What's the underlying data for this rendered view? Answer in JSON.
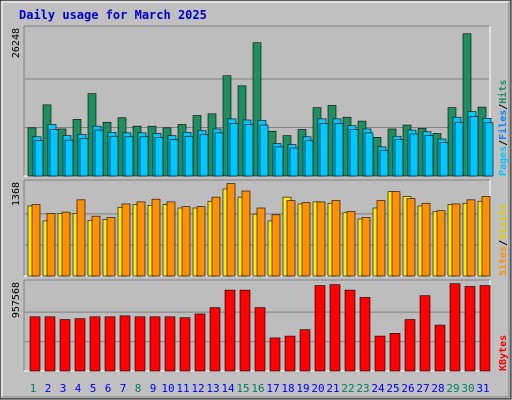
{
  "chart_data": {
    "type": "bar",
    "title": "Daily usage for March 2025",
    "days": [
      "1",
      "2",
      "3",
      "4",
      "5",
      "6",
      "7",
      "8",
      "9",
      "10",
      "11",
      "12",
      "13",
      "14",
      "15",
      "16",
      "17",
      "18",
      "19",
      "20",
      "21",
      "22",
      "23",
      "24",
      "25",
      "26",
      "27",
      "28",
      "29",
      "30",
      "31"
    ],
    "weekend_days": [
      1,
      8,
      15,
      16,
      22,
      23,
      29,
      30
    ],
    "panels": [
      {
        "id": "pages-files-hits",
        "max_label": "26248",
        "ymax": 26248,
        "label_parts": [
          "Pages",
          "Files",
          "Hits"
        ],
        "series": [
          {
            "name": "Hits",
            "color": "#1f8f60",
            "values": [
              8600,
              12700,
              8400,
              10100,
              14700,
              9600,
              10400,
              8900,
              8900,
              8600,
              9200,
              10800,
              11100,
              17900,
              16100,
              23800,
              8000,
              7200,
              8300,
              12200,
              12600,
              10500,
              9800,
              6900,
              8400,
              9100,
              8500,
              7600,
              12200,
              25400,
              12300
            ]
          },
          {
            "name": "Files",
            "color": "#00c8ff",
            "values": [
              7000,
              9200,
              7200,
              7400,
              8900,
              7800,
              7700,
              7700,
              7600,
              7200,
              7800,
              8100,
              8400,
              10200,
              10000,
              9900,
              5800,
              5600,
              7000,
              10200,
              10200,
              9000,
              8400,
              5200,
              7100,
              8200,
              7900,
              6600,
              10500,
              11500,
              10300
            ]
          },
          {
            "name": "Pages",
            "color": "#00c8ff",
            "values": [
              6300,
              8300,
              6400,
              6700,
              8200,
              7100,
              7000,
              7000,
              6900,
              6500,
              7100,
              7400,
              7700,
              9400,
              9200,
              9100,
              5200,
              5000,
              6300,
              9400,
              9400,
              8300,
              7700,
              4600,
              6500,
              7500,
              7200,
              6000,
              9600,
              10600,
              9500
            ]
          }
        ]
      },
      {
        "id": "visits-sites",
        "max_label": "1368",
        "ymax": 1368,
        "label_parts": [
          "Sites",
          "Visits"
        ],
        "series": [
          {
            "name": "Visits",
            "color": "#ffe810",
            "values": [
              1030,
              810,
              920,
              920,
              820,
              830,
              1010,
              1050,
              1040,
              1050,
              1000,
              1000,
              1100,
              1280,
              1160,
              910,
              810,
              1160,
              1060,
              1090,
              1070,
              930,
              840,
              1000,
              1240,
              1170,
              1030,
              950,
              1050,
              1070,
              1100
            ]
          },
          {
            "name": "Sites",
            "color": "#ff9000",
            "values": [
              1050,
              920,
              940,
              1120,
              880,
              860,
              1060,
              1090,
              1130,
              1090,
              1020,
              1020,
              1160,
              1360,
              1250,
              1000,
              900,
              1110,
              1080,
              1090,
              1110,
              950,
              860,
              1110,
              1240,
              1140,
              1070,
              960,
              1060,
              1120,
              1170
            ]
          }
        ]
      },
      {
        "id": "kbytes",
        "max_label": "957568",
        "ymax": 957568,
        "label_parts": [
          "KBytes"
        ],
        "series": [
          {
            "name": "KBytes",
            "color": "#ff0000",
            "values": [
              590000,
              590000,
              560000,
              570000,
              590000,
              590000,
              600000,
              590000,
              590000,
              590000,
              580000,
              620000,
              690000,
              880000,
              880000,
              690000,
              360000,
              380000,
              450000,
              930000,
              940000,
              880000,
              800000,
              380000,
              410000,
              560000,
              820000,
              500000,
              950000,
              920000,
              930000
            ]
          }
        ]
      }
    ]
  },
  "colors": {
    "frame_bg": "#c0c0c0",
    "plot_bg": "#bdbdbd",
    "title": "#0000cc",
    "weekday_label": "#0000ff",
    "weekend_label": "#00805f"
  }
}
